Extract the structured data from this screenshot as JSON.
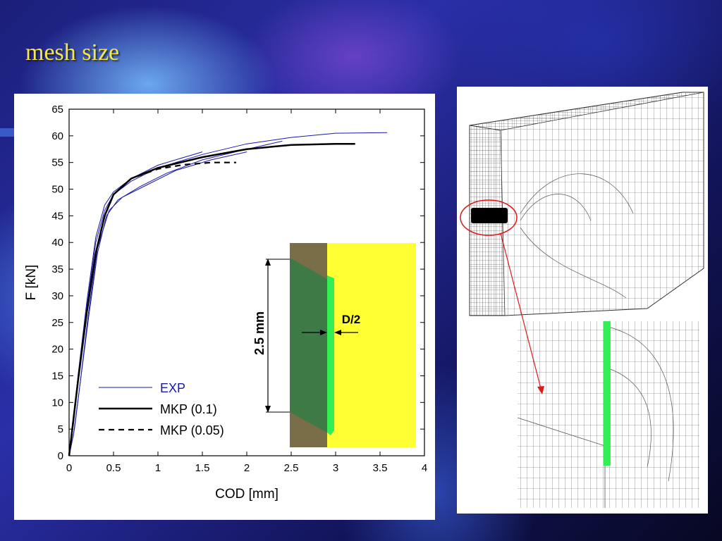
{
  "slide": {
    "title": "mesh size"
  },
  "chart_data": {
    "type": "line",
    "xlabel": "COD [mm]",
    "ylabel": "F [kN]",
    "xlim": [
      0,
      4
    ],
    "ylim": [
      0,
      65
    ],
    "xticks": [
      "0",
      "0.5",
      "1",
      "1.5",
      "2",
      "2.5",
      "3",
      "3.5",
      "4"
    ],
    "yticks": [
      "0",
      "5",
      "10",
      "15",
      "20",
      "25",
      "30",
      "35",
      "40",
      "45",
      "50",
      "55",
      "60",
      "65"
    ],
    "legend_position": "bottom-left",
    "series": [
      {
        "name": "EXP",
        "color": "#1a1aa8",
        "style": "solid-thin",
        "x": [
          0,
          0.05,
          0.1,
          0.2,
          0.3,
          0.4,
          0.5,
          0.7,
          1.0,
          1.5,
          2.0,
          2.5,
          3.0,
          3.58
        ],
        "y": [
          0,
          6,
          14,
          28,
          40,
          46,
          49,
          51.5,
          54,
          56.5,
          58.5,
          59.7,
          60.5,
          60.6
        ]
      },
      {
        "name": "",
        "color": "#1a1aa8",
        "style": "solid-thin",
        "x": [
          0,
          0.06,
          0.12,
          0.22,
          0.32,
          0.42,
          0.55,
          0.8,
          1.1,
          1.5,
          2.0,
          2.4
        ],
        "y": [
          0,
          5,
          13,
          26,
          38,
          45,
          48,
          50.5,
          53,
          55.5,
          57.5,
          59
        ]
      },
      {
        "name": "",
        "color": "#1a1aa8",
        "style": "solid-thin",
        "x": [
          0,
          0.04,
          0.1,
          0.2,
          0.3,
          0.4,
          0.5,
          0.7,
          1.0,
          1.3,
          1.5
        ],
        "y": [
          0,
          5,
          15,
          29,
          41,
          47,
          49.5,
          52,
          54.5,
          56,
          57
        ]
      },
      {
        "name": "",
        "color": "#1a1aa8",
        "style": "solid-thin",
        "x": [
          0,
          0.05,
          0.12,
          0.22,
          0.32,
          0.45,
          0.6,
          0.9,
          1.2,
          1.6,
          2.0
        ],
        "y": [
          0,
          4,
          13,
          27,
          39,
          46,
          48.5,
          51,
          53.5,
          55.5,
          57
        ]
      },
      {
        "name": "MKP (0.1)",
        "color": "#000000",
        "style": "solid-thick",
        "x": [
          0,
          0.1,
          0.2,
          0.3,
          0.4,
          0.5,
          0.7,
          1.0,
          1.5,
          2.0,
          2.5,
          3.0,
          3.22
        ],
        "y": [
          0,
          14,
          27,
          38,
          45,
          49,
          52,
          54,
          56,
          57.5,
          58.3,
          58.5,
          58.5
        ]
      },
      {
        "name": "MKP (0.05)",
        "color": "#000000",
        "style": "dashed",
        "x": [
          0,
          0.1,
          0.2,
          0.3,
          0.4,
          0.5,
          0.7,
          1.0,
          1.3,
          1.6,
          1.88
        ],
        "y": [
          0,
          14,
          27,
          38,
          45,
          49,
          52,
          53.8,
          54.6,
          55,
          55
        ]
      }
    ]
  },
  "inset": {
    "dimension_label": "2.5 mm",
    "width_label": "D/2"
  }
}
